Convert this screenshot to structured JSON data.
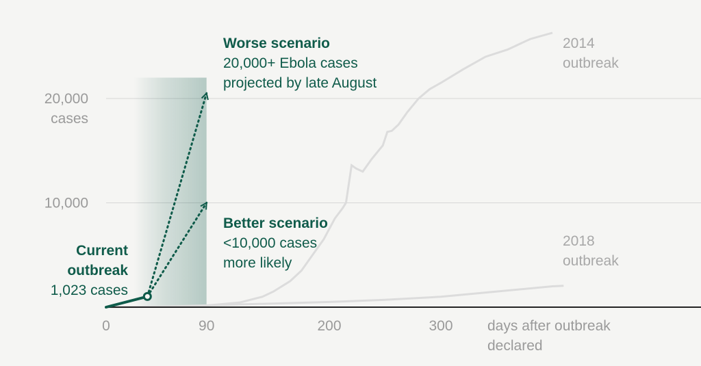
{
  "chart_data": {
    "type": "line",
    "xlim": [
      0,
      1050
    ],
    "ylim": [
      0,
      28000
    ],
    "x_ticks": [
      "0",
      "90",
      "200",
      "300"
    ],
    "y_ticks": [
      {
        "value": 10000,
        "label": "10,000",
        "unit": ""
      },
      {
        "value": 20000,
        "label": "20,000",
        "unit": "cases"
      }
    ],
    "xlabel": [
      "days after outbreak",
      "declared"
    ],
    "grid": true,
    "colors": {
      "accent": "#0f5b4a",
      "past": "#dcdcdc",
      "grid": "#d6d6d6",
      "axis": "#222222"
    },
    "series": [
      {
        "name": "2014 outbreak",
        "label_lines": [
          "2014",
          "outbreak"
        ],
        "points": [
          [
            0,
            0
          ],
          [
            60,
            60
          ],
          [
            90,
            160
          ],
          [
            120,
            450
          ],
          [
            140,
            1000
          ],
          [
            150,
            1500
          ],
          [
            165,
            2500
          ],
          [
            175,
            3500
          ],
          [
            185,
            5000
          ],
          [
            195,
            6500
          ],
          [
            205,
            8500
          ],
          [
            212,
            9500
          ],
          [
            215,
            10000
          ],
          [
            220,
            13600
          ],
          [
            224,
            13300
          ],
          [
            230,
            13000
          ],
          [
            238,
            14200
          ],
          [
            248,
            15500
          ],
          [
            252,
            16800
          ],
          [
            256,
            16900
          ],
          [
            262,
            17500
          ],
          [
            270,
            18700
          ],
          [
            280,
            20000
          ],
          [
            290,
            20900
          ],
          [
            300,
            21500
          ],
          [
            320,
            22800
          ],
          [
            340,
            24000
          ],
          [
            360,
            24700
          ],
          [
            380,
            25700
          ],
          [
            400,
            26300
          ]
        ]
      },
      {
        "name": "2018 outbreak",
        "label_lines": [
          "2018",
          "outbreak"
        ],
        "points": [
          [
            0,
            0
          ],
          [
            50,
            50
          ],
          [
            100,
            200
          ],
          [
            150,
            350
          ],
          [
            200,
            500
          ],
          [
            250,
            700
          ],
          [
            300,
            1000
          ],
          [
            350,
            1500
          ],
          [
            400,
            2000
          ],
          [
            410,
            2050
          ]
        ]
      },
      {
        "name": "Current outbreak",
        "label_lines": [
          "Current",
          "outbreak",
          "1,023 cases"
        ],
        "points": [
          [
            0,
            0
          ],
          [
            37,
            1023
          ]
        ]
      }
    ],
    "projection_band": {
      "x": [
        37,
        90
      ]
    },
    "projections": [
      {
        "name": "Worse scenario",
        "from": [
          37,
          1023
        ],
        "to": [
          90,
          20500
        ],
        "title": "Worse scenario",
        "lines": [
          "20,000+ Ebola cases",
          "projected by late August"
        ]
      },
      {
        "name": "Better scenario",
        "from": [
          37,
          1023
        ],
        "to": [
          90,
          10000
        ],
        "title": "Better scenario",
        "lines": [
          "<10,000 cases",
          "more likely"
        ]
      }
    ]
  }
}
